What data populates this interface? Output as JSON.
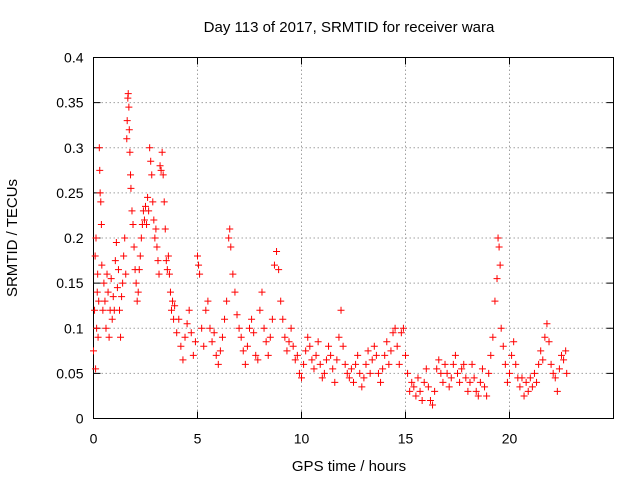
{
  "chart_data": {
    "type": "scatter",
    "title": "Day 113 of 2017, SRMTID for receiver wara",
    "xlabel": "GPS time / hours",
    "ylabel": "SRMTID / TECUs",
    "xlim": [
      0,
      25
    ],
    "ylim": [
      0,
      0.4
    ],
    "xticks": [
      0,
      5,
      10,
      15,
      20
    ],
    "xtick_labels": [
      "0",
      "5",
      "10",
      "15",
      "20"
    ],
    "yticks": [
      0,
      0.05,
      0.1,
      0.15,
      0.2,
      0.25,
      0.3,
      0.35,
      0.4
    ],
    "ytick_labels": [
      "0",
      "0.05",
      "0.1",
      "0.15",
      "0.2",
      "0.25",
      "0.3",
      "0.35",
      "0.4"
    ],
    "grid": true,
    "marker": "+",
    "color": "#ff0000",
    "series": [
      {
        "name": "SRMTID",
        "points": [
          [
            0.0,
            0.075
          ],
          [
            0.05,
            0.12
          ],
          [
            0.08,
            0.18
          ],
          [
            0.1,
            0.055
          ],
          [
            0.12,
            0.2
          ],
          [
            0.15,
            0.1
          ],
          [
            0.18,
            0.14
          ],
          [
            0.2,
            0.16
          ],
          [
            0.22,
            0.09
          ],
          [
            0.25,
            0.13
          ],
          [
            0.28,
            0.3
          ],
          [
            0.3,
            0.275
          ],
          [
            0.32,
            0.25
          ],
          [
            0.35,
            0.24
          ],
          [
            0.38,
            0.215
          ],
          [
            0.4,
            0.17
          ],
          [
            0.45,
            0.12
          ],
          [
            0.5,
            0.15
          ],
          [
            0.55,
            0.13
          ],
          [
            0.6,
            0.1
          ],
          [
            0.65,
            0.16
          ],
          [
            0.7,
            0.14
          ],
          [
            0.75,
            0.09
          ],
          [
            0.8,
            0.12
          ],
          [
            0.85,
            0.155
          ],
          [
            0.9,
            0.11
          ],
          [
            0.95,
            0.135
          ],
          [
            1.0,
            0.12
          ],
          [
            1.05,
            0.175
          ],
          [
            1.1,
            0.195
          ],
          [
            1.15,
            0.145
          ],
          [
            1.2,
            0.165
          ],
          [
            1.25,
            0.12
          ],
          [
            1.3,
            0.09
          ],
          [
            1.35,
            0.135
          ],
          [
            1.4,
            0.15
          ],
          [
            1.45,
            0.18
          ],
          [
            1.5,
            0.2
          ],
          [
            1.55,
            0.16
          ],
          [
            1.6,
            0.31
          ],
          [
            1.62,
            0.33
          ],
          [
            1.65,
            0.355
          ],
          [
            1.67,
            0.36
          ],
          [
            1.7,
            0.345
          ],
          [
            1.72,
            0.32
          ],
          [
            1.75,
            0.295
          ],
          [
            1.78,
            0.27
          ],
          [
            1.8,
            0.255
          ],
          [
            1.85,
            0.23
          ],
          [
            1.9,
            0.215
          ],
          [
            1.95,
            0.19
          ],
          [
            2.0,
            0.165
          ],
          [
            2.05,
            0.15
          ],
          [
            2.1,
            0.13
          ],
          [
            2.15,
            0.14
          ],
          [
            2.2,
            0.165
          ],
          [
            2.25,
            0.18
          ],
          [
            2.3,
            0.2
          ],
          [
            2.35,
            0.215
          ],
          [
            2.4,
            0.23
          ],
          [
            2.45,
            0.22
          ],
          [
            2.5,
            0.235
          ],
          [
            2.55,
            0.215
          ],
          [
            2.6,
            0.245
          ],
          [
            2.65,
            0.23
          ],
          [
            2.7,
            0.3
          ],
          [
            2.75,
            0.285
          ],
          [
            2.8,
            0.27
          ],
          [
            2.85,
            0.24
          ],
          [
            2.9,
            0.22
          ],
          [
            2.95,
            0.2
          ],
          [
            3.0,
            0.21
          ],
          [
            3.05,
            0.19
          ],
          [
            3.1,
            0.175
          ],
          [
            3.15,
            0.16
          ],
          [
            3.2,
            0.28
          ],
          [
            3.25,
            0.275
          ],
          [
            3.3,
            0.295
          ],
          [
            3.35,
            0.27
          ],
          [
            3.4,
            0.24
          ],
          [
            3.45,
            0.21
          ],
          [
            3.5,
            0.175
          ],
          [
            3.55,
            0.165
          ],
          [
            3.6,
            0.18
          ],
          [
            3.65,
            0.16
          ],
          [
            3.7,
            0.14
          ],
          [
            3.75,
            0.12
          ],
          [
            3.8,
            0.13
          ],
          [
            3.85,
            0.11
          ],
          [
            3.9,
            0.125
          ],
          [
            4.0,
            0.095
          ],
          [
            4.1,
            0.11
          ],
          [
            4.2,
            0.08
          ],
          [
            4.3,
            0.065
          ],
          [
            4.4,
            0.09
          ],
          [
            4.5,
            0.105
          ],
          [
            4.6,
            0.12
          ],
          [
            4.7,
            0.095
          ],
          [
            4.8,
            0.07
          ],
          [
            4.9,
            0.085
          ],
          [
            5.0,
            0.18
          ],
          [
            5.05,
            0.17
          ],
          [
            5.1,
            0.16
          ],
          [
            5.2,
            0.1
          ],
          [
            5.3,
            0.08
          ],
          [
            5.4,
            0.12
          ],
          [
            5.5,
            0.13
          ],
          [
            5.6,
            0.1
          ],
          [
            5.7,
            0.085
          ],
          [
            5.8,
            0.095
          ],
          [
            5.9,
            0.07
          ],
          [
            6.0,
            0.06
          ],
          [
            6.1,
            0.075
          ],
          [
            6.2,
            0.09
          ],
          [
            6.3,
            0.11
          ],
          [
            6.4,
            0.13
          ],
          [
            6.5,
            0.2
          ],
          [
            6.55,
            0.21
          ],
          [
            6.6,
            0.19
          ],
          [
            6.7,
            0.16
          ],
          [
            6.8,
            0.14
          ],
          [
            6.9,
            0.115
          ],
          [
            7.0,
            0.1
          ],
          [
            7.1,
            0.09
          ],
          [
            7.2,
            0.075
          ],
          [
            7.3,
            0.06
          ],
          [
            7.4,
            0.08
          ],
          [
            7.5,
            0.1
          ],
          [
            7.6,
            0.11
          ],
          [
            7.7,
            0.095
          ],
          [
            7.8,
            0.07
          ],
          [
            7.9,
            0.065
          ],
          [
            8.0,
            0.12
          ],
          [
            8.1,
            0.14
          ],
          [
            8.2,
            0.1
          ],
          [
            8.3,
            0.085
          ],
          [
            8.4,
            0.07
          ],
          [
            8.5,
            0.09
          ],
          [
            8.6,
            0.11
          ],
          [
            8.7,
            0.17
          ],
          [
            8.8,
            0.185
          ],
          [
            8.9,
            0.165
          ],
          [
            9.0,
            0.13
          ],
          [
            9.1,
            0.11
          ],
          [
            9.2,
            0.09
          ],
          [
            9.3,
            0.075
          ],
          [
            9.4,
            0.085
          ],
          [
            9.5,
            0.1
          ],
          [
            9.6,
            0.08
          ],
          [
            9.7,
            0.065
          ],
          [
            9.8,
            0.07
          ],
          [
            9.9,
            0.05
          ],
          [
            10.0,
            0.045
          ],
          [
            10.1,
            0.06
          ],
          [
            10.2,
            0.075
          ],
          [
            10.3,
            0.09
          ],
          [
            10.4,
            0.08
          ],
          [
            10.5,
            0.065
          ],
          [
            10.6,
            0.055
          ],
          [
            10.7,
            0.07
          ],
          [
            10.8,
            0.085
          ],
          [
            10.9,
            0.06
          ],
          [
            11.0,
            0.045
          ],
          [
            11.1,
            0.05
          ],
          [
            11.2,
            0.065
          ],
          [
            11.3,
            0.08
          ],
          [
            11.4,
            0.07
          ],
          [
            11.5,
            0.055
          ],
          [
            11.6,
            0.04
          ],
          [
            11.7,
            0.065
          ],
          [
            11.8,
            0.09
          ],
          [
            11.9,
            0.12
          ],
          [
            12.0,
            0.08
          ],
          [
            12.1,
            0.06
          ],
          [
            12.2,
            0.05
          ],
          [
            12.3,
            0.045
          ],
          [
            12.4,
            0.055
          ],
          [
            12.5,
            0.04
          ],
          [
            12.6,
            0.06
          ],
          [
            12.7,
            0.07
          ],
          [
            12.8,
            0.05
          ],
          [
            12.9,
            0.035
          ],
          [
            13.0,
            0.045
          ],
          [
            13.1,
            0.06
          ],
          [
            13.2,
            0.075
          ],
          [
            13.3,
            0.05
          ],
          [
            13.4,
            0.065
          ],
          [
            13.5,
            0.08
          ],
          [
            13.6,
            0.07
          ],
          [
            13.7,
            0.05
          ],
          [
            13.8,
            0.04
          ],
          [
            13.9,
            0.055
          ],
          [
            14.0,
            0.07
          ],
          [
            14.1,
            0.085
          ],
          [
            14.2,
            0.06
          ],
          [
            14.3,
            0.075
          ],
          [
            14.4,
            0.095
          ],
          [
            14.5,
            0.1
          ],
          [
            14.6,
            0.08
          ],
          [
            14.7,
            0.06
          ],
          [
            14.8,
            0.095
          ],
          [
            14.9,
            0.1
          ],
          [
            15.0,
            0.07
          ],
          [
            15.1,
            0.05
          ],
          [
            15.2,
            0.03
          ],
          [
            15.3,
            0.04
          ],
          [
            15.4,
            0.035
          ],
          [
            15.5,
            0.025
          ],
          [
            15.6,
            0.045
          ],
          [
            15.7,
            0.03
          ],
          [
            15.8,
            0.02
          ],
          [
            15.9,
            0.04
          ],
          [
            16.0,
            0.055
          ],
          [
            16.1,
            0.035
          ],
          [
            16.2,
            0.02
          ],
          [
            16.3,
            0.015
          ],
          [
            16.4,
            0.03
          ],
          [
            16.5,
            0.055
          ],
          [
            16.6,
            0.065
          ],
          [
            16.7,
            0.05
          ],
          [
            16.8,
            0.04
          ],
          [
            16.9,
            0.06
          ],
          [
            17.0,
            0.05
          ],
          [
            17.1,
            0.035
          ],
          [
            17.2,
            0.045
          ],
          [
            17.3,
            0.06
          ],
          [
            17.4,
            0.07
          ],
          [
            17.5,
            0.05
          ],
          [
            17.6,
            0.04
          ],
          [
            17.7,
            0.055
          ],
          [
            17.8,
            0.06
          ],
          [
            17.9,
            0.045
          ],
          [
            18.0,
            0.03
          ],
          [
            18.1,
            0.04
          ],
          [
            18.2,
            0.06
          ],
          [
            18.3,
            0.045
          ],
          [
            18.4,
            0.03
          ],
          [
            18.5,
            0.025
          ],
          [
            18.6,
            0.04
          ],
          [
            18.7,
            0.055
          ],
          [
            18.8,
            0.035
          ],
          [
            18.9,
            0.025
          ],
          [
            19.0,
            0.05
          ],
          [
            19.1,
            0.07
          ],
          [
            19.2,
            0.09
          ],
          [
            19.3,
            0.13
          ],
          [
            19.4,
            0.155
          ],
          [
            19.45,
            0.2
          ],
          [
            19.5,
            0.19
          ],
          [
            19.55,
            0.17
          ],
          [
            19.6,
            0.1
          ],
          [
            19.7,
            0.08
          ],
          [
            19.8,
            0.06
          ],
          [
            19.9,
            0.04
          ],
          [
            20.0,
            0.05
          ],
          [
            20.1,
            0.07
          ],
          [
            20.2,
            0.085
          ],
          [
            20.3,
            0.06
          ],
          [
            20.4,
            0.045
          ],
          [
            20.5,
            0.035
          ],
          [
            20.6,
            0.045
          ],
          [
            20.7,
            0.025
          ],
          [
            20.8,
            0.04
          ],
          [
            20.9,
            0.03
          ],
          [
            21.0,
            0.045
          ],
          [
            21.1,
            0.035
          ],
          [
            21.2,
            0.05
          ],
          [
            21.3,
            0.04
          ],
          [
            21.4,
            0.06
          ],
          [
            21.5,
            0.075
          ],
          [
            21.6,
            0.065
          ],
          [
            21.7,
            0.09
          ],
          [
            21.8,
            0.105
          ],
          [
            21.9,
            0.085
          ],
          [
            22.0,
            0.06
          ],
          [
            22.1,
            0.05
          ],
          [
            22.2,
            0.045
          ],
          [
            22.3,
            0.03
          ],
          [
            22.4,
            0.055
          ],
          [
            22.5,
            0.07
          ],
          [
            22.6,
            0.065
          ],
          [
            22.7,
            0.075
          ],
          [
            22.75,
            0.05
          ]
        ]
      }
    ]
  }
}
